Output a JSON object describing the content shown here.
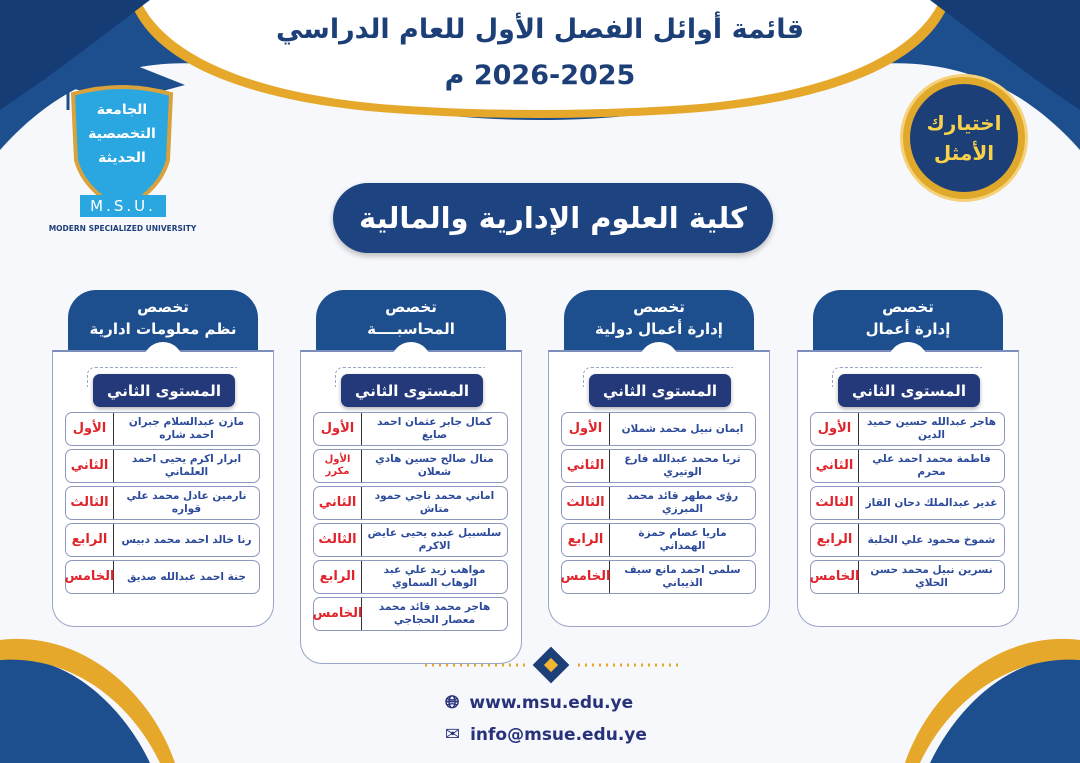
{
  "header": {
    "title": "قائمة أوائل الفصل الأول للعام الدراسي",
    "year": "2026-2025 م"
  },
  "logo": {
    "ar_name": "الجامعة التخصصية الحديثة",
    "abbr": "M.S.U.",
    "en_name": "MODERN SPECIALIZED UNIVERSITY"
  },
  "badge": {
    "line1": "اختيارك",
    "line2": "الأمثل"
  },
  "faculty": "كلية العلوم الإدارية والمالية",
  "colors": {
    "navy": "#1d4380",
    "gold": "#e0a92c",
    "rank_red": "#e0242b",
    "name_blue": "#2c4a9a"
  },
  "columns": [
    {
      "tab_label": "تخصص",
      "major": "إدارة أعمال",
      "level": "المستوى الثاني",
      "rows": [
        {
          "rank": "الأول",
          "name": "هاجر عبدالله حسين حميد الدين"
        },
        {
          "rank": "الثاني",
          "name": "فاطمة محمد احمد علي محرم"
        },
        {
          "rank": "الثالث",
          "name": "غدير عبدالملك دحان القاز"
        },
        {
          "rank": "الرابع",
          "name": "شموخ محمود علي الخلبة"
        },
        {
          "rank": "الخامس",
          "name": "نسرين نبيل محمد حسن الحلاي"
        }
      ]
    },
    {
      "tab_label": "تخصص",
      "major": "إدارة أعمال دولية",
      "level": "المستوى الثاني",
      "rows": [
        {
          "rank": "الأول",
          "name": "ايمان نبيل محمد شملان"
        },
        {
          "rank": "الثاني",
          "name": "ثريا محمد عبدالله فارع الوتيري"
        },
        {
          "rank": "الثالث",
          "name": "رؤى مطهر قائد محمد المبرزي"
        },
        {
          "rank": "الرابع",
          "name": "ماريا عصام حمزة الهمداني"
        },
        {
          "rank": "الخامس",
          "name": "سلمى احمد مانع سيف الذيباني"
        }
      ]
    },
    {
      "tab_label": "تخصص",
      "major": "المحاسبــــة",
      "level": "المستوى الثاني",
      "rows": [
        {
          "rank": "الأول",
          "name": "كمال جابر عثمان احمد صايغ"
        },
        {
          "rank": "الأول مكرر",
          "name": "منال صالح حسين هادي شعلان"
        },
        {
          "rank": "الثاني",
          "name": "اماني محمد ناجي حمود متاش"
        },
        {
          "rank": "الثالث",
          "name": "سلسبيل عبده يحيى عايض الاكرم"
        },
        {
          "rank": "الرابع",
          "name": "مواهب زيد علي عبد الوهاب السماوي"
        },
        {
          "rank": "الخامس",
          "name": "هاجر محمد قائد محمد معصار الحجاجي"
        }
      ]
    },
    {
      "tab_label": "تخصص",
      "major": "نظم معلومات ادارية",
      "level": "المستوى الثاني",
      "rows": [
        {
          "rank": "الأول",
          "name": "مازن عبدالسلام جبران احمد شاره"
        },
        {
          "rank": "الثاني",
          "name": "ابرار اكرم يحيى احمد العلماني"
        },
        {
          "rank": "الثالث",
          "name": "نارمين عادل محمد علي قواره"
        },
        {
          "rank": "الرابع",
          "name": "رنا خالد احمد محمد دبيس"
        },
        {
          "rank": "الخامس",
          "name": "جنة احمد عبدالله صديق"
        }
      ]
    }
  ],
  "footer": {
    "website": "www.msu.edu.ye",
    "email": "info@msue.edu.ye"
  }
}
